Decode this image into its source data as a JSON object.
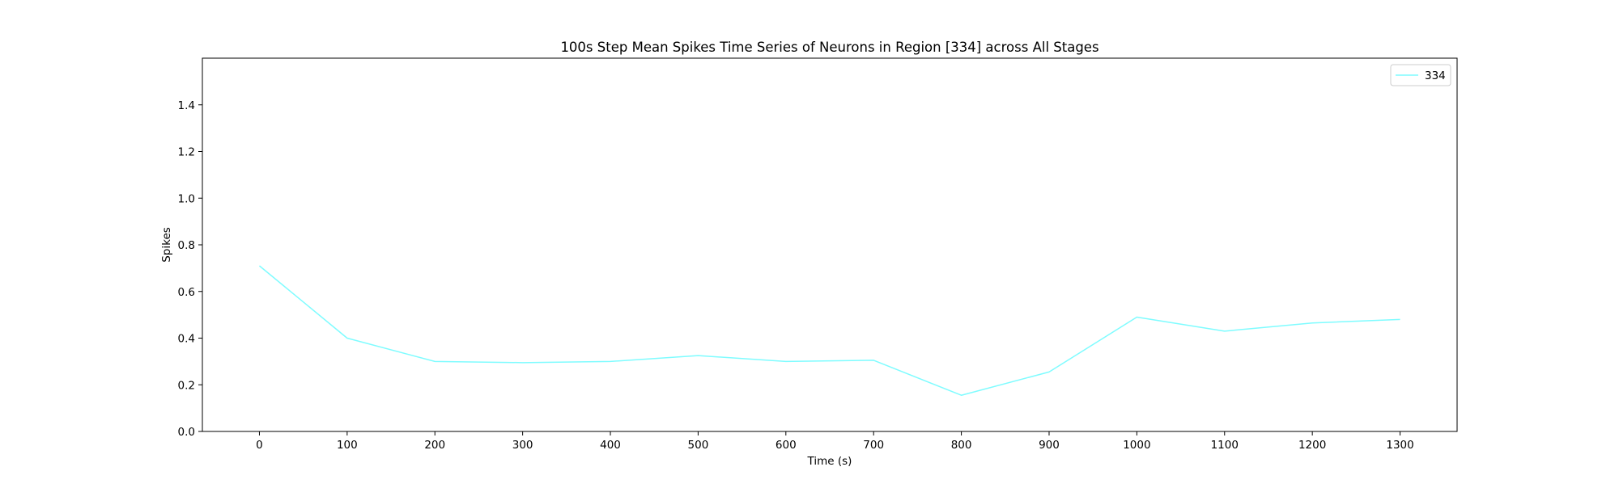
{
  "chart_data": {
    "type": "line",
    "title": "100s Step Mean Spikes Time Series of Neurons in Region [334] across All Stages",
    "xlabel": "Time (s)",
    "ylabel": "Spikes",
    "x": [
      0,
      100,
      200,
      300,
      400,
      500,
      600,
      700,
      800,
      900,
      1000,
      1100,
      1200,
      1300
    ],
    "series": [
      {
        "name": "334",
        "color": "#7ffcff",
        "values": [
          0.71,
          0.4,
          0.3,
          0.295,
          0.3,
          0.325,
          0.3,
          0.305,
          0.155,
          0.255,
          0.49,
          0.43,
          0.465,
          0.48
        ]
      }
    ],
    "xlim": [
      -65,
      1365
    ],
    "ylim": [
      0,
      1.6
    ],
    "xticks": [
      0,
      100,
      200,
      300,
      400,
      500,
      600,
      700,
      800,
      900,
      1000,
      1100,
      1200,
      1300
    ],
    "yticks": [
      0.0,
      0.2,
      0.4,
      0.6,
      0.8,
      1.0,
      1.2,
      1.4
    ],
    "ytick_labels": [
      "0.0",
      "0.2",
      "0.4",
      "0.6",
      "0.8",
      "1.0",
      "1.2",
      "1.4"
    ],
    "grid": false,
    "legend_position": "top-right"
  }
}
